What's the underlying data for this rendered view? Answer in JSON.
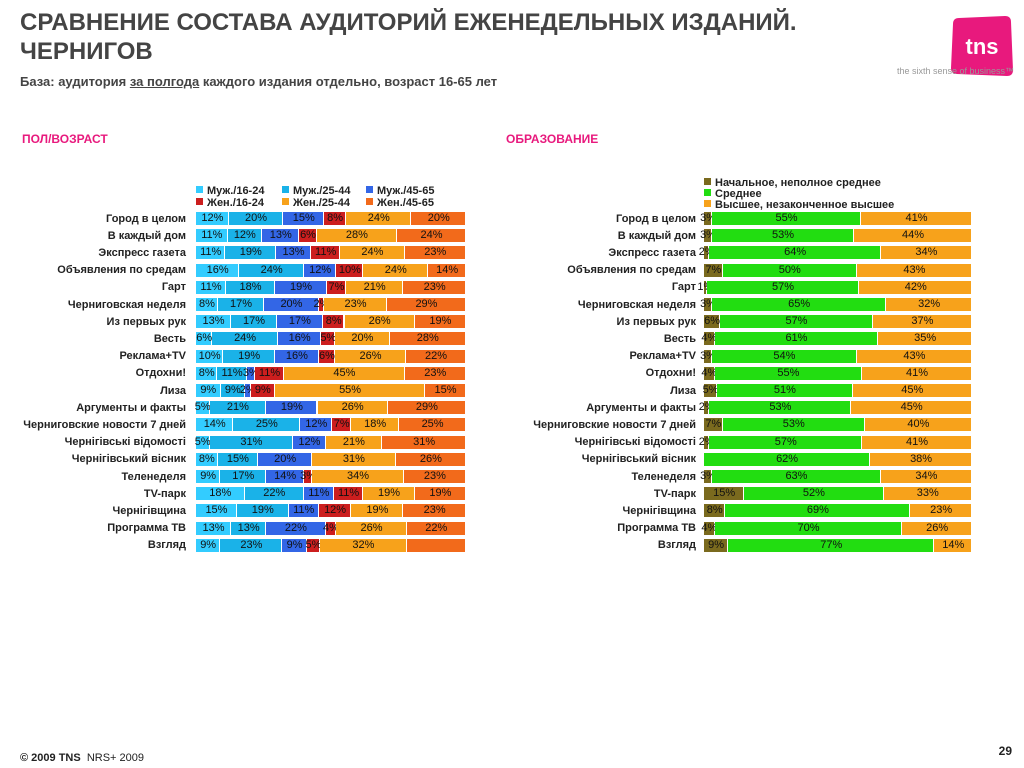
{
  "header": {
    "title": "СРАВНЕНИЕ СОСТАВА АУДИТОРИЙ ЕЖЕНЕДЕЛЬНЫХ ИЗДАНИЙ. ЧЕРНИГОВ",
    "base_prefix": "База: аудитория ",
    "base_underlined": "за полгода",
    "base_suffix": " каждого издания отдельно, возраст 16-65 лет"
  },
  "logo": {
    "text": "tns",
    "tagline": "the sixth sense of business™",
    "color": "#e8197d"
  },
  "footer": {
    "copyright": "© 2009 TNS",
    "source": "NRS+ 2009",
    "page": "29"
  },
  "chart_data": [
    {
      "type": "bar",
      "orientation": "horizontal",
      "stacked": true,
      "title": "ПОЛ/ВОЗРАСТ",
      "categories": [
        "Город в целом",
        "В каждый дом",
        "Экспресс газета",
        "Объявления по средам",
        "Гарт",
        "Черниговская неделя",
        "Из первых рук",
        "Весть",
        "Реклама+TV",
        "Отдохни!",
        "Лиза",
        "Аргументы и факты",
        "Черниговские новости 7 дней",
        "Чернігівські відомості",
        "Чернігівський вісник",
        "Теленеделя",
        "TV-парк",
        "Чернігівщина",
        "Программа ТВ",
        "Взгляд"
      ],
      "series": [
        {
          "name": "Муж./16-24",
          "color": "#33ccff",
          "values": [
            12,
            11,
            11,
            16,
            11,
            8,
            13,
            6,
            10,
            8,
            9,
            5,
            14,
            5,
            8,
            9,
            18,
            15,
            13,
            9
          ]
        },
        {
          "name": "Муж./25-44",
          "color": "#1ab2e8",
          "values": [
            20,
            12,
            19,
            24,
            18,
            17,
            17,
            24,
            19,
            11,
            9,
            21,
            25,
            31,
            15,
            17,
            22,
            19,
            13,
            23
          ]
        },
        {
          "name": "Муж./45-65",
          "color": "#3366e6",
          "values": [
            15,
            13,
            13,
            12,
            19,
            20,
            17,
            16,
            16,
            3,
            2,
            19,
            12,
            12,
            20,
            14,
            11,
            11,
            22,
            9
          ]
        },
        {
          "name": "Жен./16-24",
          "color": "#cc1e1e",
          "values": [
            8,
            6,
            11,
            10,
            7,
            2,
            8,
            5,
            6,
            11,
            9,
            0,
            7,
            0,
            0,
            3,
            11,
            12,
            4,
            5
          ]
        },
        {
          "name": "Жен./25-44",
          "color": "#f7a21b",
          "values": [
            24,
            28,
            24,
            24,
            21,
            23,
            26,
            20,
            26,
            45,
            55,
            26,
            18,
            21,
            31,
            34,
            19,
            19,
            26,
            32
          ]
        },
        {
          "name": "Жен./45-65",
          "color": "#f26a1b",
          "values": [
            20,
            24,
            23,
            14,
            23,
            29,
            19,
            28,
            22,
            23,
            15,
            29,
            25,
            31,
            26,
            23,
            19,
            23,
            22,
            22
          ]
        }
      ],
      "data_labels": [
        [
          "12%",
          "20%",
          "15%",
          "8%",
          "24%",
          "20%"
        ],
        [
          "11%",
          "12%",
          "13%",
          "6%",
          "28%",
          "24%"
        ],
        [
          "11%",
          "19%",
          "13%",
          "11%",
          "24%",
          "23%"
        ],
        [
          "16%",
          "24%",
          "12%",
          "10%",
          "24%",
          "14%"
        ],
        [
          "11%",
          "18%",
          "19%",
          "7%",
          "21%",
          "23%"
        ],
        [
          "8%",
          "17%",
          "20%",
          "2%",
          "23%",
          "29%"
        ],
        [
          "13%",
          "17%",
          "17%",
          "8%",
          "26%",
          "19%"
        ],
        [
          "6%",
          "24%",
          "16%",
          "5%",
          "20%",
          "28%"
        ],
        [
          "10%",
          "19%",
          "16%",
          "6%",
          "26%",
          "22%"
        ],
        [
          "8%",
          "11%",
          "3%",
          "11%",
          "45%",
          "23%"
        ],
        [
          "9%",
          "9%",
          "2%",
          "9%",
          "55%",
          "15%"
        ],
        [
          "5%",
          "21%",
          "19%",
          "",
          "26%",
          "29%"
        ],
        [
          "14%",
          "25%",
          "12%",
          "7%",
          "18%",
          "25%"
        ],
        [
          "5%",
          "31%",
          "12%",
          "",
          "21%",
          "31%"
        ],
        [
          "8%",
          "15%",
          "20%",
          "",
          "31%",
          "26%"
        ],
        [
          "9%",
          "17%",
          "14%",
          "3%",
          "34%",
          "23%"
        ],
        [
          "18%",
          "22%",
          "11%",
          "11%",
          "19%",
          "19%"
        ],
        [
          "15%",
          "19%",
          "11%",
          "12%",
          "19%",
          "23%"
        ],
        [
          "13%",
          "13%",
          "22%",
          "4%",
          "26%",
          "22%"
        ],
        [
          "9%",
          "23%",
          "9%",
          "5%",
          "32%",
          ""
        ]
      ],
      "legend": "top",
      "xlim": [
        0,
        100
      ]
    },
    {
      "type": "bar",
      "orientation": "horizontal",
      "stacked": true,
      "title": "ОБРАЗОВАНИЕ",
      "categories": [
        "Город в целом",
        "В каждый дом",
        "Экспресс газета",
        "Объявления по средам",
        "Гарт",
        "Черниговская неделя",
        "Из первых рук",
        "Весть",
        "Реклама+TV",
        "Отдохни!",
        "Лиза",
        "Аргументы и факты",
        "Черниговские новости 7 дней",
        "Чернігівські відомості",
        "Чернігівський вісник",
        "Теленеделя",
        "TV-парк",
        "Чернігівщина",
        "Программа ТВ",
        "Взгляд"
      ],
      "series": [
        {
          "name": "Начальное, неполное среднее",
          "color": "#7a6a1e",
          "values": [
            3,
            3,
            2,
            7,
            1,
            3,
            6,
            4,
            3,
            4,
            5,
            2,
            7,
            2,
            0,
            3,
            15,
            8,
            4,
            9
          ]
        },
        {
          "name": "Среднее",
          "color": "#22dd11",
          "values": [
            55,
            53,
            64,
            50,
            57,
            65,
            57,
            61,
            54,
            55,
            51,
            53,
            53,
            57,
            62,
            63,
            52,
            69,
            70,
            77
          ]
        },
        {
          "name": "Высшее, незаконченное высшее",
          "color": "#f7a21b",
          "values": [
            41,
            44,
            34,
            43,
            42,
            32,
            37,
            35,
            43,
            41,
            45,
            45,
            40,
            41,
            38,
            34,
            33,
            23,
            26,
            14
          ]
        }
      ],
      "data_labels": [
        [
          "3%",
          "55%",
          "41%"
        ],
        [
          "3%",
          "53%",
          "44%"
        ],
        [
          "2%",
          "64%",
          "34%"
        ],
        [
          "7%",
          "50%",
          "43%"
        ],
        [
          "1%",
          "57%",
          "42%"
        ],
        [
          "3%",
          "65%",
          "32%"
        ],
        [
          "6%",
          "57%",
          "37%"
        ],
        [
          "4%",
          "61%",
          "35%"
        ],
        [
          "3%",
          "54%",
          "43%"
        ],
        [
          "4%",
          "55%",
          "41%"
        ],
        [
          "5%",
          "51%",
          "45%"
        ],
        [
          "2%",
          "53%",
          "45%"
        ],
        [
          "7%",
          "53%",
          "40%"
        ],
        [
          "2%",
          "57%",
          "41%"
        ],
        [
          "",
          "62%",
          "38%"
        ],
        [
          "3%",
          "63%",
          "34%"
        ],
        [
          "15%",
          "52%",
          "33%"
        ],
        [
          "8%",
          "69%",
          "23%"
        ],
        [
          "4%",
          "70%",
          "26%"
        ],
        [
          "9%",
          "77%",
          "14%"
        ]
      ],
      "legend": "top",
      "xlim": [
        0,
        100
      ]
    }
  ]
}
